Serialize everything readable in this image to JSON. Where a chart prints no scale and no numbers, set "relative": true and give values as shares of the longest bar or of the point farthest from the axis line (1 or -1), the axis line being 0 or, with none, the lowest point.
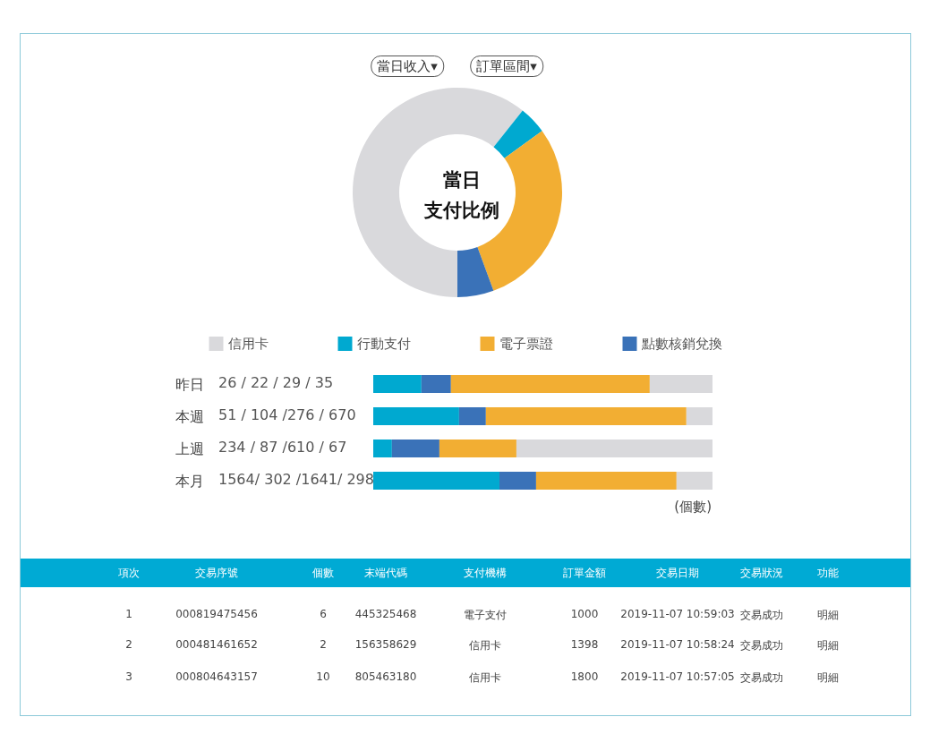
{
  "chart_data": [
    {
      "type": "donut",
      "title": "當日",
      "subtitle": "支付比例",
      "categories": [
        "信用卡",
        "行動支付",
        "電子票證",
        "點數核銷兌換"
      ],
      "values": [
        60.7,
        4.3,
        29.4,
        5.6
      ],
      "colors": [
        "#d9d9dc",
        "#00a9d0",
        "#f2ae33",
        "#3a72b8"
      ],
      "legend": "bottom",
      "annotations": [
        "當日收入▾",
        "訂單區間▾"
      ]
    },
    {
      "type": "bar",
      "orientation": "horizontal",
      "stacked": true,
      "relative": true,
      "categories": [
        "昨日",
        "本週",
        "上週",
        "本月"
      ],
      "xlabel": "(個數)",
      "series": [
        {
          "color": "#00a9d0",
          "values": [
            0.142,
            0.253,
            0.055,
            0.372
          ]
        },
        {
          "color": "#3a72b8",
          "values": [
            0.087,
            0.079,
            0.14,
            0.108
          ]
        },
        {
          "color": "#f2ae33",
          "values": [
            0.586,
            0.591,
            0.227,
            0.414
          ]
        },
        {
          "color": "#d9d9dc",
          "values": [
            0.185,
            0.077,
            0.578,
            0.106
          ]
        }
      ],
      "annotations": [
        "26 / 22 / 29 / 35",
        "51 / 104 /276 / 670",
        "234 / 87 /610 / 67",
        "1564/ 302 /1641/ 298"
      ]
    },
    {
      "type": "other",
      "categories": [
        "項次",
        "交易序號",
        "個數",
        "末端代碼",
        "支付機構",
        "訂單金額",
        "交易日期",
        "交易狀況",
        "功能"
      ],
      "annotations": [
        "1",
        "000819475456",
        "6",
        "445325468",
        "電子支付",
        "1000",
        "2019-11-07 10:59:03",
        "交易成功",
        "明細",
        "2",
        "000481461652",
        "2",
        "156358629",
        "信用卡",
        "1398",
        "2019-11-07 10:58:24",
        "交易成功",
        "明細",
        "3",
        "000804643157",
        "10",
        "805463180",
        "信用卡",
        "1800",
        "2019-11-07 10:57:05",
        "交易成功",
        "明細"
      ]
    }
  ]
}
